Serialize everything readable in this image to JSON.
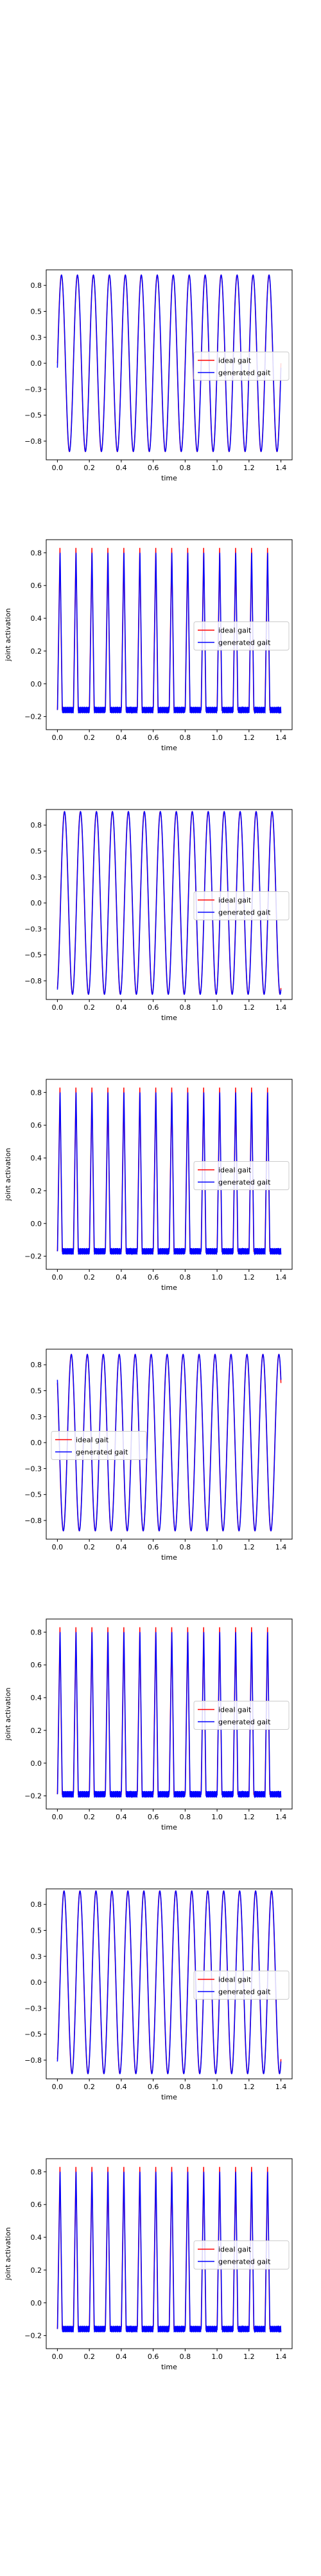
{
  "legend_labels": [
    "ideal gait",
    "generated gait"
  ],
  "colors": {
    "ideal": "#ff0000",
    "generated": "#0000ff",
    "axes": "#000000",
    "legend_border": "#cccccc"
  },
  "chart_data": [
    {
      "type": "line",
      "title": "",
      "xlabel": "time",
      "ylabel": "",
      "xlim": [
        -0.07,
        1.47
      ],
      "ylim": [
        -0.93,
        0.9
      ],
      "xticks": [
        0.0,
        0.2,
        0.4,
        0.6,
        0.8,
        1.0,
        1.2,
        1.4
      ],
      "yticks": [
        -0.75,
        -0.5,
        -0.25,
        0.0,
        0.25,
        0.5,
        0.75
      ],
      "legend_position": "center-right",
      "pattern": "sine",
      "cycles": 14,
      "amplitude": 0.85,
      "phase": 0.0,
      "x_range": [
        0.0,
        1.4
      ],
      "series": [
        {
          "name": "ideal gait",
          "color": "#ff0000"
        },
        {
          "name": "generated gait",
          "color": "#0000ff"
        }
      ]
    },
    {
      "type": "line",
      "title": "",
      "xlabel": "time",
      "ylabel": "joint activation",
      "xlim": [
        -0.07,
        1.47
      ],
      "ylim": [
        -0.28,
        0.88
      ],
      "xticks": [
        0.0,
        0.2,
        0.4,
        0.6,
        0.8,
        1.0,
        1.2,
        1.4
      ],
      "yticks": [
        -0.2,
        0.0,
        0.2,
        0.4,
        0.6,
        0.8
      ],
      "legend_position": "center-right",
      "pattern": "spike",
      "cycles": 14,
      "peak": 0.83,
      "baseline": -0.16,
      "phase": 0.0,
      "x_range": [
        0.0,
        1.4
      ],
      "series": [
        {
          "name": "ideal gait",
          "color": "#ff0000"
        },
        {
          "name": "generated gait",
          "color": "#0000ff"
        }
      ]
    },
    {
      "type": "line",
      "title": "",
      "xlabel": "time",
      "ylabel": "",
      "xlim": [
        -0.07,
        1.47
      ],
      "ylim": [
        -0.93,
        0.9
      ],
      "xticks": [
        0.0,
        0.2,
        0.4,
        0.6,
        0.8,
        1.0,
        1.2,
        1.4
      ],
      "yticks": [
        -0.75,
        -0.5,
        -0.25,
        0.0,
        0.25,
        0.5,
        0.75
      ],
      "legend_position": "center-right",
      "pattern": "sine",
      "cycles": 14,
      "amplitude": 0.88,
      "phase": -1.2,
      "x_range": [
        0.0,
        1.4
      ],
      "series": [
        {
          "name": "ideal gait",
          "color": "#ff0000"
        },
        {
          "name": "generated gait",
          "color": "#0000ff"
        }
      ]
    },
    {
      "type": "line",
      "title": "",
      "xlabel": "time",
      "ylabel": "joint activation",
      "xlim": [
        -0.07,
        1.47
      ],
      "ylim": [
        -0.28,
        0.88
      ],
      "xticks": [
        0.0,
        0.2,
        0.4,
        0.6,
        0.8,
        1.0,
        1.2,
        1.4
      ],
      "yticks": [
        -0.2,
        0.0,
        0.2,
        0.4,
        0.6,
        0.8
      ],
      "legend_position": "center-right",
      "pattern": "spike",
      "cycles": 14,
      "peak": 0.83,
      "baseline": -0.17,
      "phase": 0.0,
      "x_range": [
        0.0,
        1.4
      ],
      "series": [
        {
          "name": "ideal gait",
          "color": "#ff0000"
        },
        {
          "name": "generated gait",
          "color": "#0000ff"
        }
      ]
    },
    {
      "type": "line",
      "title": "",
      "xlabel": "time",
      "ylabel": "",
      "xlim": [
        -0.07,
        1.47
      ],
      "ylim": [
        -0.93,
        0.9
      ],
      "xticks": [
        0.0,
        0.2,
        0.4,
        0.6,
        0.8,
        1.0,
        1.2,
        1.4
      ],
      "yticks": [
        -0.75,
        -0.5,
        -0.25,
        0.0,
        0.25,
        0.5,
        0.75
      ],
      "legend_position": "center-left",
      "pattern": "sine",
      "cycles": 14,
      "amplitude": 0.85,
      "phase": 2.4,
      "x_range": [
        0.0,
        1.4
      ],
      "series": [
        {
          "name": "ideal gait",
          "color": "#ff0000"
        },
        {
          "name": "generated gait",
          "color": "#0000ff"
        }
      ]
    },
    {
      "type": "line",
      "title": "",
      "xlabel": "time",
      "ylabel": "joint activation",
      "xlim": [
        -0.07,
        1.47
      ],
      "ylim": [
        -0.28,
        0.88
      ],
      "xticks": [
        0.0,
        0.2,
        0.4,
        0.6,
        0.8,
        1.0,
        1.2,
        1.4
      ],
      "yticks": [
        -0.2,
        0.0,
        0.2,
        0.4,
        0.6,
        0.8
      ],
      "legend_position": "center-right",
      "pattern": "spike",
      "cycles": 14,
      "peak": 0.83,
      "baseline": -0.19,
      "phase": 0.0,
      "x_range": [
        0.0,
        1.4
      ],
      "series": [
        {
          "name": "ideal gait",
          "color": "#ff0000"
        },
        {
          "name": "generated gait",
          "color": "#0000ff"
        }
      ]
    },
    {
      "type": "line",
      "title": "",
      "xlabel": "time",
      "ylabel": "",
      "xlim": [
        -0.07,
        1.47
      ],
      "ylim": [
        -0.93,
        0.9
      ],
      "xticks": [
        0.0,
        0.2,
        0.4,
        0.6,
        0.8,
        1.0,
        1.2,
        1.4
      ],
      "yticks": [
        -0.75,
        -0.5,
        -0.25,
        0.0,
        0.25,
        0.5,
        0.75
      ],
      "legend_position": "center-right",
      "pattern": "sine",
      "cycles": 14,
      "amplitude": 0.88,
      "phase": -1.0,
      "x_range": [
        0.0,
        1.4
      ],
      "series": [
        {
          "name": "ideal gait",
          "color": "#ff0000"
        },
        {
          "name": "generated gait",
          "color": "#0000ff"
        }
      ]
    },
    {
      "type": "line",
      "title": "",
      "xlabel": "time",
      "ylabel": "joint activation",
      "xlim": [
        -0.07,
        1.47
      ],
      "ylim": [
        -0.28,
        0.88
      ],
      "xticks": [
        0.0,
        0.2,
        0.4,
        0.6,
        0.8,
        1.0,
        1.2,
        1.4
      ],
      "yticks": [
        -0.2,
        0.0,
        0.2,
        0.4,
        0.6,
        0.8
      ],
      "legend_position": "center-right",
      "pattern": "spike",
      "cycles": 14,
      "peak": 0.83,
      "baseline": -0.16,
      "phase": 0.0,
      "x_range": [
        0.0,
        1.4
      ],
      "series": [
        {
          "name": "ideal gait",
          "color": "#ff0000"
        },
        {
          "name": "generated gait",
          "color": "#0000ff"
        }
      ]
    }
  ]
}
